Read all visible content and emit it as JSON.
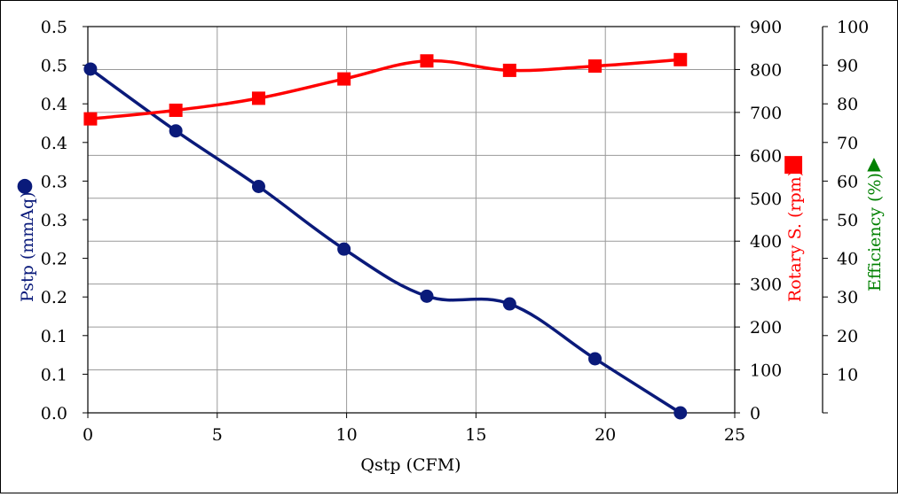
{
  "chart_data": {
    "type": "line",
    "title": "",
    "xlabel": "Qstp (CFM)",
    "x_ticks": [
      "0",
      "5",
      "10",
      "15",
      "20",
      "25"
    ],
    "xlim": [
      0,
      25
    ],
    "grid": true,
    "legend": "none",
    "axes": {
      "left": {
        "label": "Pstp (mmAq)",
        "marker_label": "●",
        "color": "#0a1a7a",
        "ylim": [
          0,
          0.5
        ],
        "tick_labels": [
          "0.0",
          "0.1",
          "0.1",
          "0.2",
          "0.2",
          "0.3",
          "0.3",
          "0.4",
          "0.4",
          "0.5",
          "0.5"
        ]
      },
      "right1": {
        "label": "Rotary S. (rpm)",
        "marker_label": "■",
        "color": "#ff0000",
        "ylim": [
          0,
          900
        ],
        "tick_labels": [
          "0",
          "100",
          "200",
          "300",
          "400",
          "500",
          "600",
          "700",
          "800",
          "900"
        ]
      },
      "right2": {
        "label": "Efficiency (%)",
        "marker_label": "▲",
        "color": "#008000",
        "ylim": [
          0,
          100
        ],
        "tick_labels": [
          "10",
          "20",
          "30",
          "40",
          "50",
          "60",
          "70",
          "80",
          "90",
          "100"
        ]
      }
    },
    "series": [
      {
        "name": "Pstp (mmAq)",
        "axis": "left",
        "marker": "circle",
        "color": "#0a1a7a",
        "x": [
          0.1,
          3.4,
          6.6,
          9.9,
          13.1,
          16.3,
          19.6,
          22.9
        ],
        "values": [
          0.445,
          0.365,
          0.293,
          0.212,
          0.151,
          0.141,
          0.07,
          0.0
        ]
      },
      {
        "name": "Rotary S. (rpm)",
        "axis": "right1",
        "marker": "square",
        "color": "#ff0000",
        "x": [
          0.1,
          3.4,
          6.6,
          9.9,
          13.1,
          16.3,
          19.6,
          22.9
        ],
        "values": [
          685,
          705,
          733,
          778,
          820,
          798,
          808,
          823
        ]
      }
    ]
  }
}
